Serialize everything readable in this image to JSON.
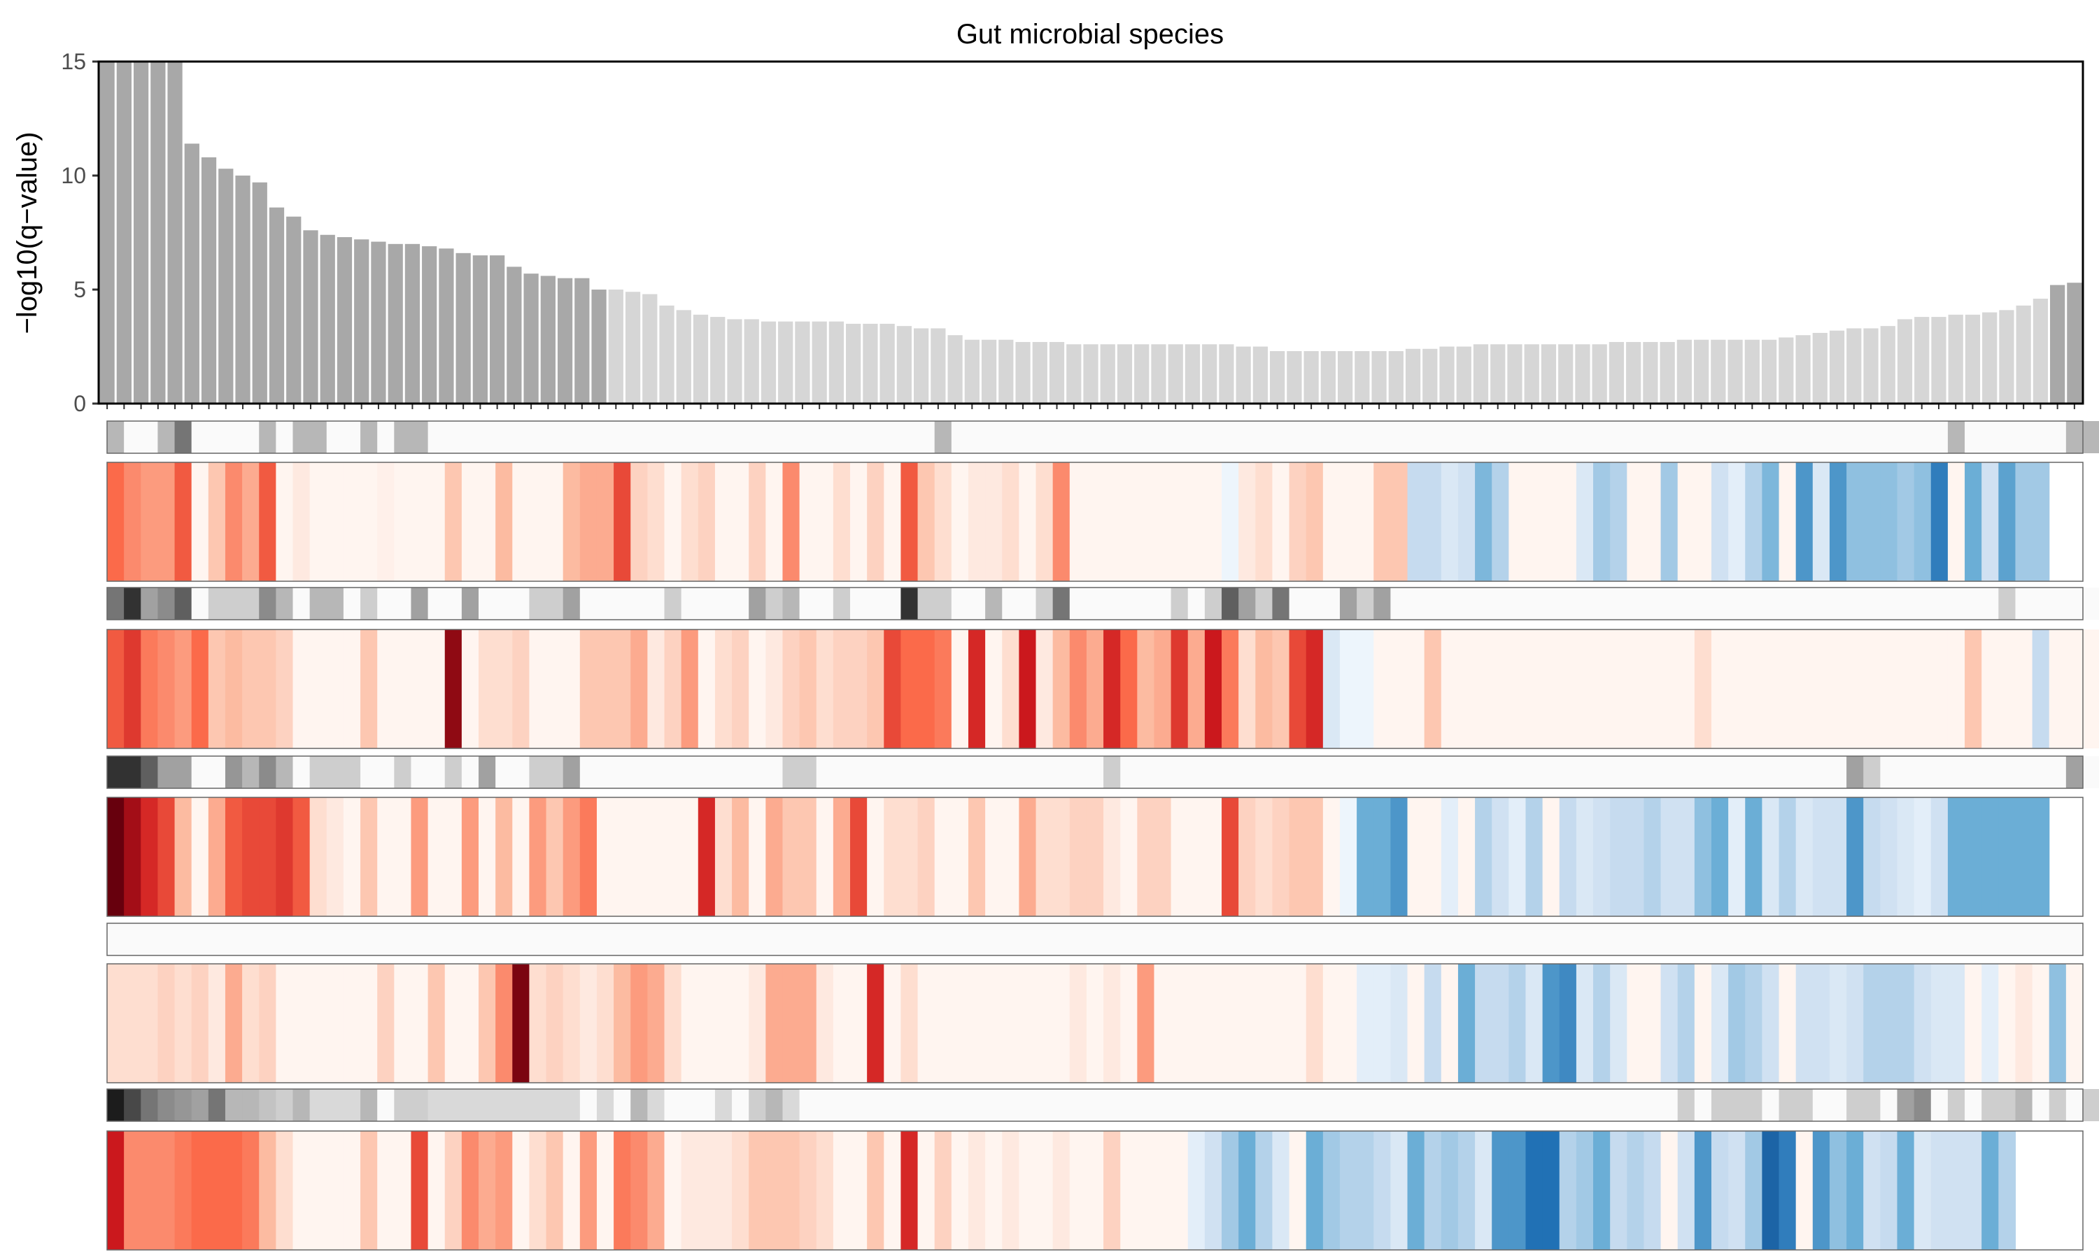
{
  "chart_data": {
    "type": "bar",
    "title": "Gut microbial species",
    "xlabel": "",
    "ylabel": "−log10(q−value)",
    "ylim": [
      0,
      15
    ],
    "yticks": [
      "0",
      "5",
      "10",
      "15"
    ],
    "bar_color_significant": "#a8a8a8",
    "bar_color_other": "#d6d6d6",
    "series": [
      {
        "values": [
          15,
          15,
          15,
          15,
          15,
          11.4,
          10.8,
          10.3,
          10.0,
          9.7,
          8.6,
          8.2,
          7.6,
          7.4,
          7.3,
          7.2,
          7.1,
          7.0,
          7.0,
          6.9,
          6.8,
          6.6,
          6.5,
          6.5,
          6.0,
          5.7,
          5.6,
          5.5,
          5.5,
          5.0,
          5.0,
          4.9,
          4.8,
          4.3,
          4.1,
          3.9,
          3.8,
          3.7,
          3.7,
          3.6,
          3.6,
          3.6,
          3.6,
          3.6,
          3.5,
          3.5,
          3.5,
          3.4,
          3.3,
          3.3,
          3.0,
          2.8,
          2.8,
          2.8,
          2.7,
          2.7,
          2.7,
          2.6,
          2.6,
          2.6,
          2.6,
          2.6,
          2.6,
          2.6,
          2.6,
          2.6,
          2.6,
          2.5,
          2.5,
          2.3,
          2.3,
          2.3,
          2.3,
          2.3,
          2.3,
          2.3,
          2.3,
          2.4,
          2.4,
          2.5,
          2.5,
          2.6,
          2.6,
          2.6,
          2.6,
          2.6,
          2.6,
          2.6,
          2.6,
          2.7,
          2.7,
          2.7,
          2.7,
          2.8,
          2.8,
          2.8,
          2.8,
          2.8,
          2.8,
          2.9,
          3.0,
          3.1,
          3.2,
          3.3,
          3.3,
          3.4,
          3.7,
          3.8,
          3.8,
          3.9,
          3.9,
          4.0,
          4.1,
          4.3,
          4.6,
          5.2,
          5.3
        ]
      }
    ],
    "annotation_tracks": [
      {
        "kind": "grey",
        "values": [
          0.3,
          0,
          0,
          0.3,
          0.6,
          0,
          0,
          0,
          0,
          0.3,
          0,
          0.3,
          0.3,
          0,
          0,
          0.3,
          0,
          0.3,
          0.3,
          0,
          0,
          0,
          0,
          0,
          0,
          0,
          0,
          0,
          0,
          0,
          0,
          0,
          0,
          0,
          0,
          0,
          0,
          0,
          0,
          0,
          0,
          0,
          0,
          0,
          0,
          0,
          0,
          0,
          0,
          0.3,
          0,
          0,
          0,
          0,
          0,
          0,
          0,
          0,
          0,
          0,
          0,
          0,
          0,
          0,
          0,
          0,
          0,
          0,
          0,
          0,
          0,
          0,
          0,
          0,
          0,
          0,
          0,
          0,
          0,
          0,
          0,
          0,
          0,
          0,
          0,
          0,
          0,
          0,
          0,
          0,
          0,
          0,
          0,
          0,
          0,
          0,
          0,
          0,
          0,
          0,
          0,
          0,
          0,
          0,
          0,
          0,
          0,
          0,
          0,
          0.3,
          0,
          0,
          0,
          0,
          0,
          0,
          0.3,
          0.3,
          0,
          0.3,
          0.3
        ]
      },
      {
        "kind": "heat",
        "values": [
          0.5,
          0.4,
          0.35,
          0.35,
          0.55,
          0,
          0.2,
          0.4,
          0.3,
          0.55,
          0,
          0.05,
          0,
          0,
          0,
          0,
          0.02,
          0,
          0,
          0,
          0.2,
          0,
          0,
          0.25,
          0,
          0,
          0,
          0.25,
          0.3,
          0.3,
          0.6,
          0.15,
          0.1,
          0,
          0.1,
          0.15,
          0,
          0,
          0.15,
          0,
          0.4,
          0,
          0,
          0.1,
          0,
          0.15,
          0,
          0.55,
          0.2,
          0.1,
          0,
          0.05,
          0.05,
          0.1,
          0,
          0.1,
          0.4,
          0,
          0,
          0,
          0,
          0,
          0,
          0,
          0,
          0,
          -0.05,
          0.05,
          0.1,
          0,
          0.15,
          0.2,
          0,
          0,
          0,
          0.2,
          0.2,
          -0.25,
          -0.25,
          -0.15,
          -0.2,
          -0.45,
          -0.3,
          0,
          0,
          0,
          0,
          -0.15,
          -0.35,
          -0.3,
          0,
          0,
          -0.35,
          0,
          0,
          -0.2,
          -0.1,
          -0.3,
          -0.45,
          0,
          -0.6,
          -0.15,
          -0.6,
          -0.4,
          -0.4,
          -0.4,
          -0.35,
          -0.4,
          -0.7,
          0,
          -0.5,
          -0.2,
          -0.55,
          -0.35,
          -0.35
        ]
      },
      {
        "kind": "grey",
        "values": [
          0.6,
          0.9,
          0.4,
          0.5,
          0.7,
          0,
          0.2,
          0.2,
          0.2,
          0.5,
          0.3,
          0,
          0.3,
          0.3,
          0,
          0.2,
          0,
          0,
          0.4,
          0,
          0,
          0.4,
          0,
          0,
          0,
          0.2,
          0.2,
          0.4,
          0,
          0,
          0,
          0,
          0,
          0.2,
          0,
          0,
          0,
          0,
          0.4,
          0.2,
          0.3,
          0,
          0,
          0.2,
          0,
          0,
          0,
          0.9,
          0.2,
          0.2,
          0,
          0,
          0.3,
          0,
          0,
          0.2,
          0.6,
          0,
          0,
          0,
          0,
          0,
          0,
          0.2,
          0,
          0.2,
          0.7,
          0.4,
          0.2,
          0.6,
          0,
          0,
          0,
          0.4,
          0.2,
          0.4,
          0,
          0,
          0,
          0,
          0,
          0,
          0,
          0,
          0,
          0,
          0,
          0,
          0,
          0,
          0,
          0,
          0,
          0,
          0,
          0,
          0,
          0,
          0,
          0,
          0,
          0,
          0,
          0,
          0,
          0,
          0,
          0,
          0,
          0,
          0,
          0,
          0.2,
          0,
          0,
          0,
          0,
          0,
          0,
          0
        ]
      },
      {
        "kind": "heat",
        "values": [
          0.55,
          0.65,
          0.45,
          0.4,
          0.35,
          0.5,
          0.2,
          0.25,
          0.2,
          0.2,
          0.15,
          0,
          0,
          0,
          0,
          0.2,
          0,
          0,
          0,
          0,
          0.9,
          0,
          0.1,
          0.1,
          0.15,
          0,
          0,
          0,
          0.2,
          0.2,
          0.2,
          0.3,
          0.05,
          0.15,
          0.35,
          0,
          0.1,
          0.15,
          0,
          0.05,
          0.15,
          0.2,
          0.1,
          0.15,
          0.15,
          0.2,
          0.6,
          0.5,
          0.5,
          0.45,
          0,
          0.7,
          0,
          0.1,
          0.75,
          0.05,
          0.25,
          0.4,
          0.3,
          0.7,
          0.5,
          0.25,
          0.3,
          0.65,
          0.3,
          0.75,
          0.45,
          0.1,
          0.25,
          0.2,
          0.6,
          0.7,
          -0.15,
          -0.05,
          -0.05,
          0,
          0,
          0,
          0.2,
          0,
          0,
          0,
          0,
          0,
          0,
          0,
          0,
          0,
          0,
          0,
          0,
          0,
          0,
          0,
          0.1,
          0,
          0,
          0,
          0,
          0,
          0,
          0,
          0,
          0,
          0,
          0,
          0,
          0,
          0,
          0,
          0.2,
          0,
          0,
          0,
          -0.25,
          0,
          0,
          0,
          0
        ]
      },
      {
        "kind": "grey",
        "values": [
          0.9,
          0.9,
          0.7,
          0.4,
          0.4,
          0,
          0,
          0.45,
          0.3,
          0.5,
          0.3,
          0,
          0.2,
          0.2,
          0.2,
          0,
          0,
          0.2,
          0,
          0,
          0.2,
          0,
          0.4,
          0,
          0,
          0.2,
          0.2,
          0.4,
          0,
          0,
          0,
          0,
          0,
          0,
          0,
          0,
          0,
          0,
          0,
          0,
          0.2,
          0.2,
          0,
          0,
          0,
          0,
          0,
          0,
          0,
          0,
          0,
          0,
          0,
          0,
          0,
          0,
          0,
          0,
          0,
          0.2,
          0,
          0,
          0,
          0,
          0,
          0,
          0,
          0,
          0,
          0,
          0,
          0,
          0,
          0,
          0,
          0,
          0,
          0,
          0,
          0,
          0,
          0,
          0,
          0,
          0,
          0,
          0,
          0,
          0,
          0,
          0,
          0,
          0,
          0,
          0,
          0,
          0,
          0,
          0,
          0,
          0,
          0,
          0,
          0.4,
          0.2,
          0,
          0,
          0,
          0,
          0,
          0,
          0,
          0,
          0,
          0,
          0,
          0.4,
          0,
          0.2
        ]
      },
      {
        "kind": "heat",
        "values": [
          1,
          0.85,
          0.7,
          0.6,
          0.25,
          0,
          0.3,
          0.55,
          0.6,
          0.6,
          0.65,
          0.55,
          0.1,
          0.05,
          0,
          0.2,
          0,
          0,
          0.35,
          0,
          0,
          0.35,
          0,
          0.25,
          0,
          0.35,
          0.2,
          0.35,
          0.45,
          0,
          0,
          0,
          0,
          0,
          0,
          0.7,
          0.1,
          0.25,
          0,
          0.3,
          0.2,
          0.2,
          0,
          0.3,
          0.6,
          0,
          0.1,
          0.1,
          0.15,
          0,
          0,
          0.2,
          0,
          0,
          0.3,
          0.1,
          0.1,
          0.15,
          0.15,
          0.05,
          0,
          0.15,
          0.15,
          0,
          0,
          0,
          0.6,
          0.15,
          0.1,
          0.15,
          0.2,
          0.2,
          0,
          -0.05,
          -0.5,
          -0.5,
          -0.6,
          0,
          0,
          -0.1,
          0,
          -0.3,
          -0.2,
          -0.1,
          -0.3,
          0,
          -0.25,
          -0.15,
          -0.2,
          -0.25,
          -0.25,
          -0.3,
          -0.2,
          -0.2,
          -0.4,
          -0.5,
          -0.1,
          -0.5,
          -0.15,
          -0.3,
          -0.15,
          -0.2,
          -0.2,
          -0.6,
          -0.25,
          -0.2,
          -0.15,
          -0.1,
          -0.2,
          -0.5,
          -0.5,
          -0.5,
          -0.5,
          -0.5,
          -0.5
        ]
      },
      {
        "kind": "grey",
        "values": [
          0,
          0,
          0,
          0,
          0,
          0,
          0,
          0,
          0,
          0,
          0,
          0,
          0,
          0,
          0,
          0,
          0,
          0,
          0,
          0,
          0,
          0,
          0,
          0,
          0,
          0,
          0,
          0,
          0,
          0,
          0,
          0,
          0,
          0,
          0,
          0,
          0,
          0,
          0,
          0,
          0,
          0,
          0,
          0,
          0,
          0,
          0,
          0,
          0,
          0,
          0,
          0,
          0,
          0,
          0,
          0,
          0,
          0,
          0,
          0,
          0,
          0,
          0,
          0,
          0,
          0,
          0,
          0,
          0,
          0,
          0,
          0,
          0,
          0,
          0,
          0,
          0,
          0,
          0,
          0,
          0,
          0,
          0,
          0,
          0,
          0,
          0,
          0,
          0,
          0,
          0,
          0,
          0,
          0,
          0,
          0,
          0,
          0,
          0,
          0,
          0,
          0,
          0,
          0,
          0,
          0,
          0,
          0,
          0,
          0,
          0,
          0,
          0,
          0,
          0,
          0,
          0
        ]
      },
      {
        "kind": "heat",
        "values": [
          0.1,
          0.1,
          0.1,
          0.15,
          0.1,
          0.15,
          0.05,
          0.3,
          0.1,
          0.15,
          0,
          0,
          0,
          0,
          0,
          0,
          0.15,
          0,
          0,
          0.2,
          0,
          0,
          0.2,
          0.4,
          0.95,
          0.1,
          0.15,
          0.1,
          0.05,
          0.1,
          0.25,
          0.35,
          0.3,
          0.1,
          0,
          0,
          0,
          0,
          0.05,
          0.3,
          0.3,
          0.3,
          0.05,
          0,
          0,
          0.7,
          0,
          0.1,
          0,
          0,
          0,
          0,
          0,
          0,
          0,
          0,
          0,
          0.05,
          0,
          0.05,
          0,
          0.35,
          0,
          0,
          0,
          0,
          0,
          0,
          0,
          0,
          0,
          0.1,
          0,
          0,
          -0.1,
          -0.1,
          -0.15,
          0,
          -0.25,
          0,
          -0.5,
          -0.25,
          -0.25,
          -0.3,
          -0.15,
          -0.6,
          -0.65,
          -0.15,
          -0.3,
          -0.15,
          0,
          0,
          -0.2,
          -0.3,
          0,
          -0.15,
          -0.35,
          -0.3,
          -0.2,
          0,
          -0.2,
          -0.2,
          -0.15,
          -0.2,
          -0.3,
          -0.3,
          -0.3,
          -0.2,
          -0.15,
          -0.15,
          0,
          -0.1,
          0,
          0.05,
          0,
          -0.4,
          0
        ]
      },
      {
        "kind": "grey",
        "values": [
          1,
          0.8,
          0.6,
          0.5,
          0.45,
          0.4,
          0.6,
          0.3,
          0.3,
          0.25,
          0.2,
          0.3,
          0.15,
          0.15,
          0.15,
          0.3,
          0,
          0.2,
          0.2,
          0.15,
          0.15,
          0.15,
          0.15,
          0.15,
          0.15,
          0.15,
          0.15,
          0.15,
          0,
          0.15,
          0,
          0.3,
          0.15,
          0,
          0,
          0,
          0.15,
          0,
          0.2,
          0.3,
          0.15,
          0,
          0,
          0,
          0,
          0,
          0,
          0,
          0,
          0,
          0,
          0,
          0,
          0,
          0,
          0,
          0,
          0,
          0,
          0,
          0,
          0,
          0,
          0,
          0,
          0,
          0,
          0,
          0,
          0,
          0,
          0,
          0,
          0,
          0,
          0,
          0,
          0,
          0,
          0,
          0,
          0,
          0,
          0,
          0,
          0,
          0,
          0,
          0,
          0,
          0,
          0,
          0,
          0.2,
          0,
          0.2,
          0.2,
          0.2,
          0,
          0.2,
          0.2,
          0,
          0,
          0.2,
          0.2,
          0,
          0.4,
          0.5,
          0,
          0.2,
          0,
          0.2,
          0.2,
          0.3,
          0,
          0.2,
          0,
          0.2,
          0
        ]
      },
      {
        "kind": "heat",
        "values": [
          0.75,
          0.4,
          0.4,
          0.4,
          0.45,
          0.5,
          0.5,
          0.5,
          0.45,
          0.25,
          0.1,
          0,
          0,
          0,
          0,
          0.2,
          0,
          0,
          0.6,
          0,
          0.15,
          0.4,
          0.3,
          0.35,
          0,
          0.1,
          0.2,
          0,
          0.35,
          0,
          0.45,
          0.4,
          0.3,
          0,
          0.05,
          0.05,
          0.05,
          0.1,
          0.2,
          0.2,
          0.2,
          0.15,
          0.1,
          0,
          0,
          0.2,
          0,
          0.7,
          0,
          0.15,
          0,
          0.05,
          0,
          0.05,
          0,
          0,
          0.05,
          0,
          0,
          0.15,
          0,
          0,
          0,
          0,
          -0.1,
          -0.2,
          -0.35,
          -0.5,
          -0.3,
          -0.15,
          0,
          -0.5,
          -0.35,
          -0.3,
          -0.3,
          -0.25,
          -0.15,
          -0.5,
          -0.3,
          -0.35,
          -0.3,
          -0.15,
          -0.6,
          -0.6,
          -0.75,
          -0.75,
          -0.3,
          -0.35,
          -0.5,
          -0.25,
          -0.3,
          -0.25,
          0,
          -0.2,
          -0.6,
          -0.25,
          -0.2,
          -0.35,
          -0.8,
          -0.7,
          0,
          -0.6,
          -0.4,
          -0.5,
          -0.2,
          -0.25,
          -0.5,
          -0.15,
          -0.2,
          -0.2,
          -0.2,
          -0.5,
          -0.3
        ]
      }
    ]
  }
}
